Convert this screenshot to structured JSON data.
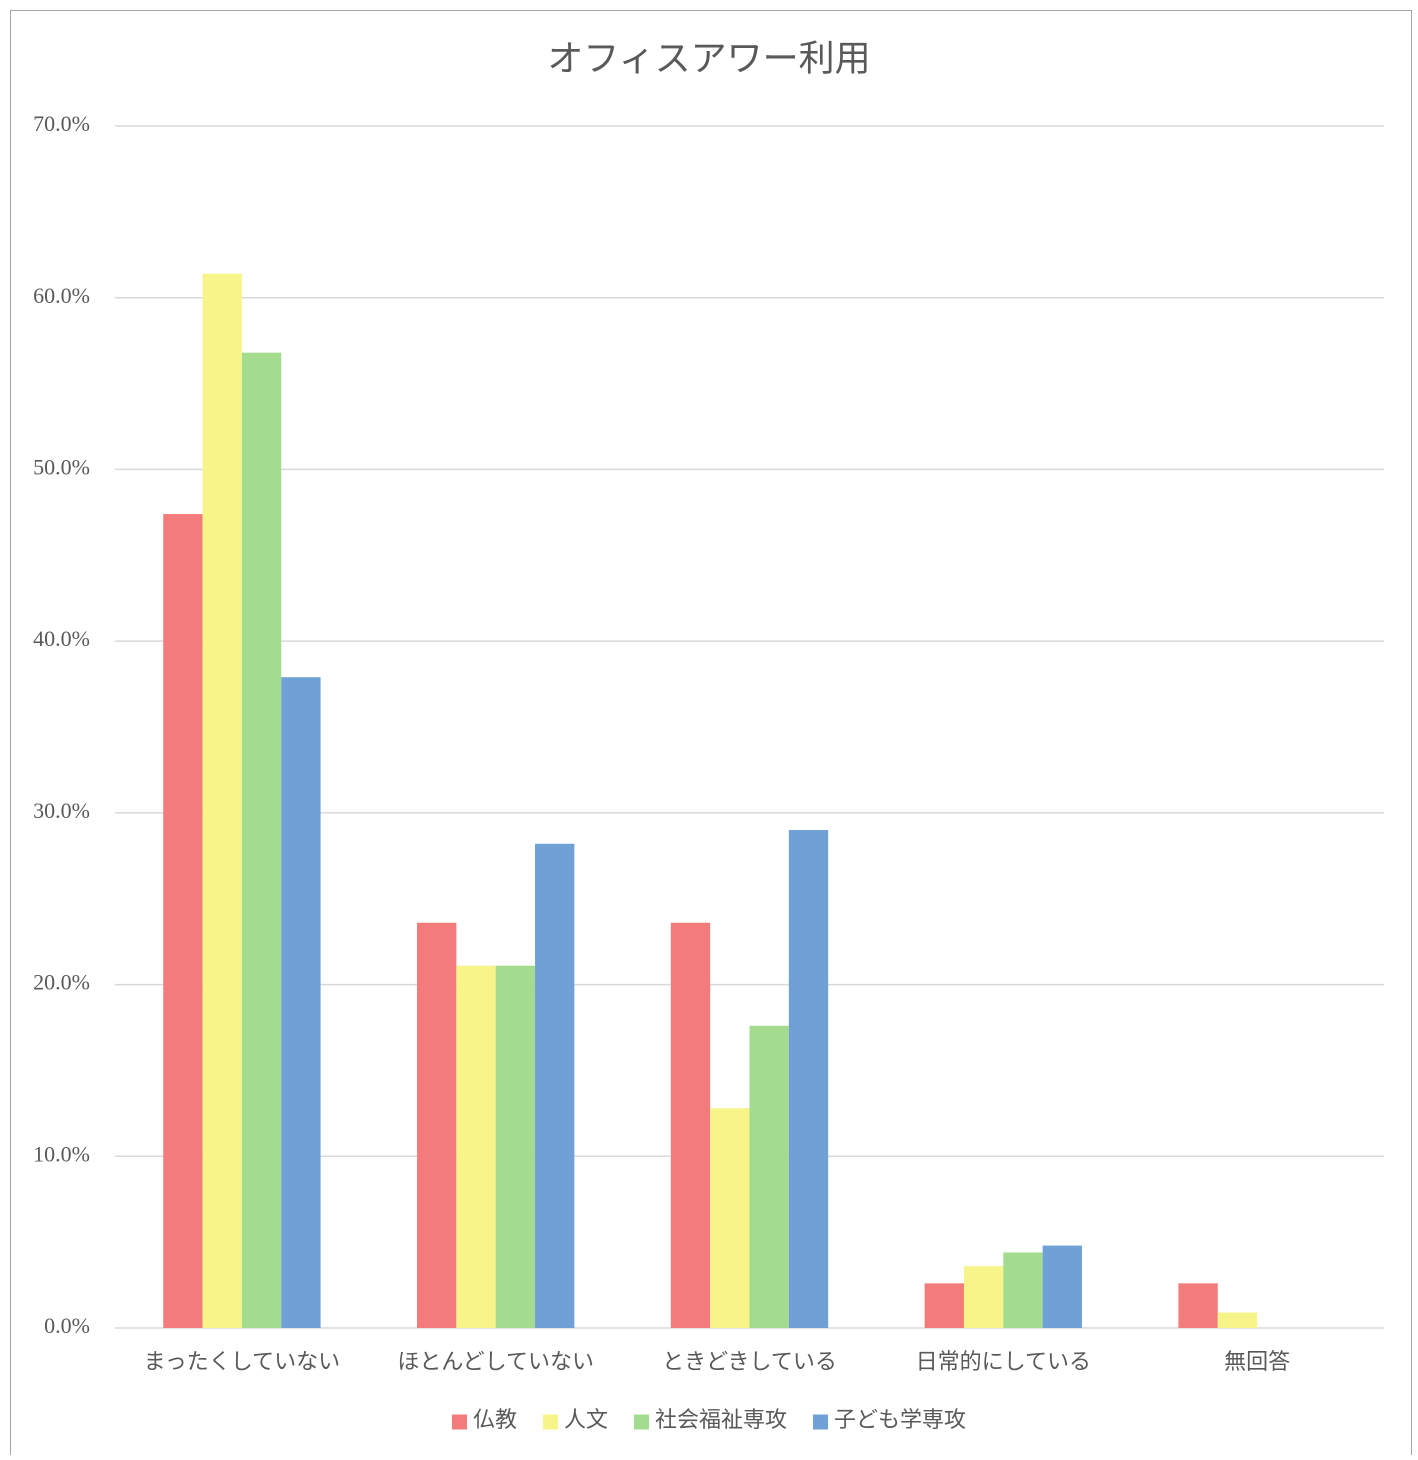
{
  "chart_data": {
    "type": "bar",
    "title": "オフィスアワー利用",
    "categories": [
      "まったくしていない",
      "ほとんどしていない",
      "ときどきしている",
      "日常的にしている",
      "無回答"
    ],
    "series": [
      {
        "name": "仏教",
        "color": "#f47b7b",
        "values": [
          47.4,
          23.6,
          23.6,
          2.6,
          2.6
        ]
      },
      {
        "name": "人文",
        "color": "#f7f58a",
        "values": [
          61.4,
          21.1,
          12.8,
          3.6,
          0.9
        ]
      },
      {
        "name": "社会福祉専攻",
        "color": "#a3dc8f",
        "values": [
          56.8,
          21.1,
          17.6,
          4.4,
          0
        ]
      },
      {
        "name": "子ども学専攻",
        "color": "#70a1d6",
        "values": [
          37.9,
          28.2,
          29.0,
          4.8,
          0
        ]
      }
    ],
    "ylim": [
      0,
      70
    ],
    "yticks": [
      {
        "value": 0,
        "label": "0.0%"
      },
      {
        "value": 10,
        "label": "10.0%"
      },
      {
        "value": 20,
        "label": "20.0%"
      },
      {
        "value": 30,
        "label": "30.0%"
      },
      {
        "value": 40,
        "label": "40.0%"
      },
      {
        "value": 50,
        "label": "50.0%"
      },
      {
        "value": 60,
        "label": "60.0%"
      },
      {
        "value": 70,
        "label": "70.0%"
      }
    ],
    "grid": true,
    "legend": "bottom"
  }
}
